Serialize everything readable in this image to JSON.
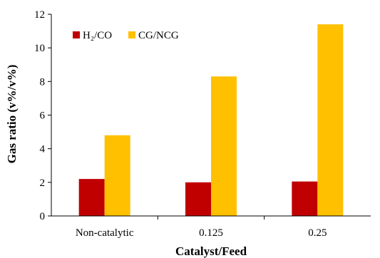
{
  "chart_data": {
    "type": "bar",
    "categories": [
      "Non-catalytic",
      "0.125",
      "0.25"
    ],
    "series": [
      {
        "name": "H₂/CO",
        "values": [
          2.2,
          2.0,
          2.05
        ],
        "color": "#c00000"
      },
      {
        "name": "CG/NCG",
        "values": [
          4.8,
          8.3,
          11.4
        ],
        "color": "#ffc000"
      }
    ],
    "xlabel": "Catalyst/Feed",
    "ylabel": "Gas ratio (v%/v%)",
    "ylim": [
      0,
      12
    ],
    "yticks": [
      "0",
      "2",
      "4",
      "6",
      "8",
      "10",
      "12"
    ],
    "grid": false,
    "legend_position": "top-left"
  }
}
